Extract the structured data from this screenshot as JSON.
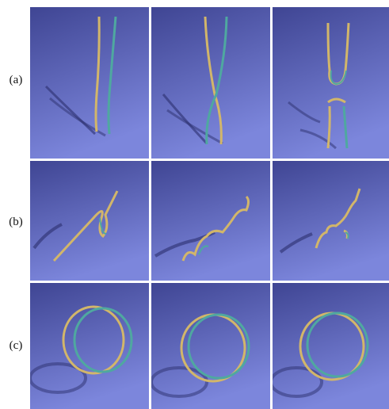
{
  "rows": [
    {
      "label": "(a)"
    },
    {
      "label": "(b)"
    },
    {
      "label": "(c)"
    }
  ],
  "colors": {
    "background_top": "#3f4593",
    "background_bottom": "#7c86dc",
    "tube_gold": "#d2b66a",
    "tube_teal": "#4fa8a0",
    "shadow": "#2c2f6e"
  }
}
